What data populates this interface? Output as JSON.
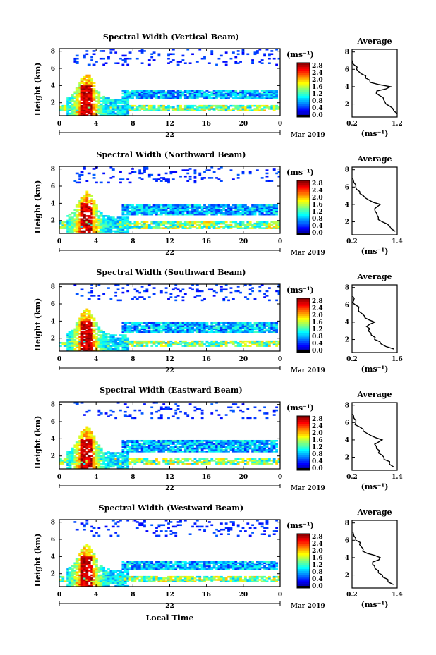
{
  "chart_data": [
    {
      "type": "heatmap",
      "title": "Spectral Width (Vertical Beam)",
      "ylabel": "Height (km)",
      "xlabel": "",
      "x_ticks": [
        "0",
        "4",
        "8",
        "12",
        "16",
        "20",
        "0"
      ],
      "y_ticks": [
        "2",
        "4",
        "6",
        "8"
      ],
      "date_label": "22",
      "month_label": "Mar 2019",
      "colorbar": {
        "unit": "(ms⁻¹)",
        "ticks": [
          "0.0",
          "0.4",
          "0.8",
          "1.2",
          "1.6",
          "2.0",
          "2.4",
          "2.8"
        ],
        "vmin": 0,
        "vmax": 2.8
      },
      "layers": {
        "low": [
          1.0,
          1.8
        ],
        "mid": [
          2.4,
          3.6
        ],
        "cloud_top": 8.0
      },
      "profile": {
        "title": "Average",
        "xlabel": "(ms⁻¹)",
        "x_ticks": [
          "0.2",
          "1.2"
        ],
        "xlim": [
          0.2,
          1.2
        ],
        "y_ticks": [
          "2",
          "4",
          "6",
          "8"
        ],
        "heights": [
          0.9,
          1.5,
          2.0,
          2.5,
          3.0,
          3.5,
          4.0,
          4.5,
          5.0,
          5.5,
          6.0,
          6.5,
          7.0
        ],
        "values": [
          1.2,
          1.1,
          0.95,
          0.9,
          0.8,
          0.75,
          1.05,
          0.6,
          0.5,
          0.4,
          0.3,
          0.25,
          0.22
        ]
      }
    },
    {
      "type": "heatmap",
      "title": "Spectral Width (Northward Beam)",
      "ylabel": "Height (km)",
      "xlabel": "",
      "x_ticks": [
        "0",
        "4",
        "8",
        "12",
        "16",
        "20",
        "0"
      ],
      "y_ticks": [
        "2",
        "4",
        "6",
        "8"
      ],
      "date_label": "22",
      "month_label": "Mar 2019",
      "colorbar": {
        "unit": "(ms⁻¹)",
        "ticks": [
          "0.0",
          "0.4",
          "0.8",
          "1.2",
          "1.6",
          "2.0",
          "2.4",
          "2.8"
        ],
        "vmin": 0,
        "vmax": 2.8
      },
      "layers": {
        "low": [
          1.0,
          2.0
        ],
        "mid": [
          2.6,
          3.8
        ],
        "cloud_top": 8.0
      },
      "profile": {
        "title": "Average",
        "xlabel": "(ms⁻¹)",
        "x_ticks": [
          "0.2",
          "1.4"
        ],
        "xlim": [
          0.2,
          1.4
        ],
        "y_ticks": [
          "2",
          "4",
          "6",
          "8"
        ],
        "heights": [
          0.9,
          1.5,
          2.0,
          2.5,
          3.0,
          3.5,
          4.0,
          4.5,
          5.0,
          5.5,
          6.0,
          6.5,
          7.0
        ],
        "values": [
          1.35,
          1.2,
          1.0,
          0.9,
          0.85,
          0.8,
          0.95,
          0.65,
          0.5,
          0.4,
          0.3,
          0.25,
          0.22
        ]
      }
    },
    {
      "type": "heatmap",
      "title": "Spectral Width (Southward Beam)",
      "ylabel": "Height (km)",
      "xlabel": "",
      "x_ticks": [
        "0",
        "4",
        "8",
        "12",
        "16",
        "20",
        "0"
      ],
      "y_ticks": [
        "2",
        "4",
        "6",
        "8"
      ],
      "date_label": "22",
      "month_label": "Mar 2019",
      "colorbar": {
        "unit": "(ms⁻¹)",
        "ticks": [
          "0.0",
          "0.4",
          "0.8",
          "1.2",
          "1.6",
          "2.0",
          "2.4",
          "2.8"
        ],
        "vmin": 0,
        "vmax": 2.8
      },
      "layers": {
        "low": [
          1.0,
          1.8
        ],
        "mid": [
          2.6,
          3.8
        ],
        "cloud_top": 8.0
      },
      "profile": {
        "title": "Average",
        "xlabel": "(ms⁻¹)",
        "x_ticks": [
          "0.2",
          "1.6"
        ],
        "xlim": [
          0.2,
          1.6
        ],
        "y_ticks": [
          "2",
          "4",
          "6",
          "8"
        ],
        "heights": [
          0.9,
          1.5,
          2.0,
          2.5,
          3.0,
          3.5,
          4.0,
          4.5,
          5.0,
          5.5,
          6.0,
          6.5,
          7.0
        ],
        "values": [
          1.5,
          1.1,
          0.9,
          0.8,
          0.7,
          0.65,
          0.9,
          0.6,
          0.5,
          0.4,
          0.3,
          0.25,
          0.22
        ]
      }
    },
    {
      "type": "heatmap",
      "title": "Spectral Width (Eastward Beam)",
      "ylabel": "Height (km)",
      "xlabel": "",
      "x_ticks": [
        "0",
        "4",
        "8",
        "12",
        "16",
        "20",
        "0"
      ],
      "y_ticks": [
        "2",
        "4",
        "6",
        "8"
      ],
      "date_label": "22",
      "month_label": "Mar 2019",
      "colorbar": {
        "unit": "(ms⁻¹)",
        "ticks": [
          "0.0",
          "0.4",
          "0.8",
          "1.2",
          "1.6",
          "2.0",
          "2.4",
          "2.8"
        ],
        "vmin": 0,
        "vmax": 2.8
      },
      "layers": {
        "low": [
          1.0,
          1.8
        ],
        "mid": [
          2.4,
          3.8
        ],
        "cloud_top": 8.0
      },
      "profile": {
        "title": "Average",
        "xlabel": "(ms⁻¹)",
        "x_ticks": [
          "0.2",
          "1.4"
        ],
        "xlim": [
          0.2,
          1.4
        ],
        "y_ticks": [
          "2",
          "4",
          "6",
          "8"
        ],
        "heights": [
          0.9,
          1.5,
          2.0,
          2.5,
          3.0,
          3.5,
          4.0,
          4.5,
          5.0,
          5.5,
          6.0,
          6.5,
          7.0
        ],
        "values": [
          1.3,
          1.2,
          1.05,
          0.9,
          0.85,
          0.8,
          1.0,
          0.7,
          0.5,
          0.4,
          0.3,
          0.25,
          0.22
        ]
      }
    },
    {
      "type": "heatmap",
      "title": "Spectral Width (Westward Beam)",
      "ylabel": "Height (km)",
      "xlabel": "Local Time",
      "x_ticks": [
        "0",
        "4",
        "8",
        "12",
        "16",
        "20",
        "0"
      ],
      "y_ticks": [
        "2",
        "4",
        "6",
        "8"
      ],
      "date_label": "22",
      "month_label": "Mar 2019",
      "colorbar": {
        "unit": "(ms⁻¹)",
        "ticks": [
          "0.0",
          "0.4",
          "0.8",
          "1.2",
          "1.6",
          "2.0",
          "2.4",
          "2.8"
        ],
        "vmin": 0,
        "vmax": 2.8
      },
      "layers": {
        "low": [
          1.0,
          1.8
        ],
        "mid": [
          2.4,
          3.6
        ],
        "cloud_top": 8.0
      },
      "profile": {
        "title": "Average",
        "xlabel": "(ms⁻¹)",
        "x_ticks": [
          "0.2",
          "1.4"
        ],
        "xlim": [
          0.2,
          1.4
        ],
        "y_ticks": [
          "2",
          "4",
          "6",
          "8"
        ],
        "heights": [
          0.9,
          1.5,
          2.0,
          2.5,
          3.0,
          3.5,
          4.0,
          4.5,
          5.0,
          5.5,
          6.0,
          6.5,
          7.0
        ],
        "values": [
          1.3,
          1.15,
          1.0,
          0.9,
          0.8,
          0.75,
          0.95,
          0.6,
          0.5,
          0.4,
          0.3,
          0.25,
          0.22
        ]
      }
    }
  ]
}
